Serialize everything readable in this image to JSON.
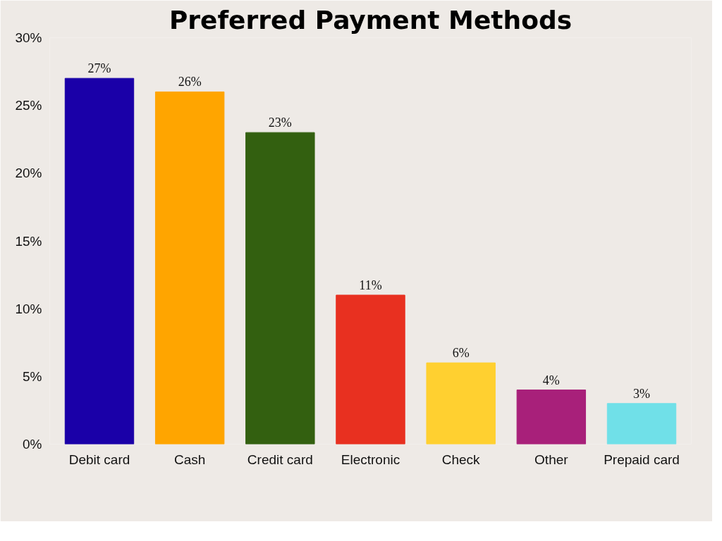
{
  "chart_data": {
    "type": "bar",
    "title": "Preferred Payment Methods",
    "categories": [
      "Debit card",
      "Cash",
      "Credit card",
      "Electronic",
      "Check",
      "Other",
      "Prepaid card"
    ],
    "values": [
      27,
      26,
      23,
      11,
      6,
      4,
      3
    ],
    "colors": [
      "#1a00a8",
      "#ffa500",
      "#336010",
      "#e83020",
      "#ffd030",
      "#a8207a",
      "#70e0e8"
    ],
    "value_labels": [
      "27%",
      "26%",
      "23%",
      "11%",
      "6%",
      "4%",
      "3%"
    ],
    "ylim": [
      0,
      30
    ],
    "yticks": [
      {
        "value": 0,
        "label": "0%"
      },
      {
        "value": 5,
        "label": "5%"
      },
      {
        "value": 10,
        "label": "10%"
      },
      {
        "value": 15,
        "label": "15%"
      },
      {
        "value": 20,
        "label": "20%"
      },
      {
        "value": 25,
        "label": "25%"
      },
      {
        "value": 30,
        "label": "30%"
      }
    ],
    "grid": false
  }
}
